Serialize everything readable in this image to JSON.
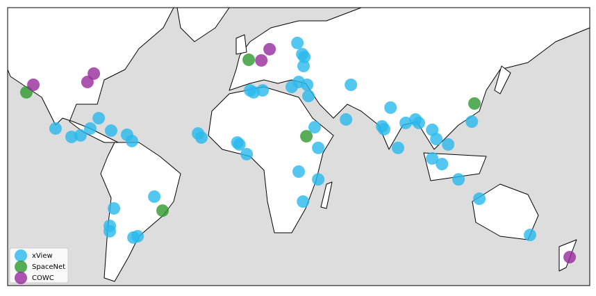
{
  "chart_data": {
    "type": "scatter",
    "xlim": [
      -124,
      186
    ],
    "ylim": [
      -59,
      70
    ],
    "series": [
      {
        "name": "xView",
        "color": "#29b9ee",
        "x": [
          -98.5,
          -90.0,
          -85.2,
          -80.0,
          -75.5,
          -68.9,
          -60.4,
          -57.8,
          -22.6,
          -20.8,
          -1.7,
          -0.6,
          3.3,
          5.1,
          11.8,
          7.0,
          30.3,
          32.9,
          33.6,
          34.0,
          27.3,
          31.0,
          35.5,
          36.2,
          58.8,
          56.2,
          39.5,
          41.4,
          31.0,
          41.4,
          33.3,
          -45.9,
          -67.4,
          -69.6,
          -69.6,
          -57.0,
          -54.8,
          79.9,
          75.4,
          76.5,
          83.9,
          88.0,
          93.2,
          95.0,
          102.1,
          104.3,
          110.6,
          102.1,
          107.3,
          123.2,
          116.1,
          127.2,
          154.2
        ],
        "values": [
          13.9,
          10.0,
          10.7,
          13.9,
          18.7,
          12.9,
          11.0,
          8.1,
          11.6,
          9.7,
          7.4,
          6.5,
          2.0,
          31.6,
          31.6,
          30.7,
          53.6,
          48.4,
          42.9,
          47.1,
          33.2,
          35.5,
          34.2,
          29.0,
          34.2,
          18.1,
          14.5,
          4.9,
          -6.1,
          -9.7,
          -20.0,
          -17.7,
          -23.2,
          -31.3,
          -33.8,
          -36.7,
          -36.1,
          23.6,
          14.9,
          13.6,
          4.9,
          16.5,
          18.1,
          16.5,
          13.3,
          9.0,
          6.5,
          0.0,
          -2.6,
          17.1,
          -9.7,
          -18.7,
          -35.5
        ]
      },
      {
        "name": "SpaceNet",
        "color": "#2e9a2e",
        "x": [
          -114.0,
          4.4,
          35.1,
          124.6,
          -41.5
        ],
        "values": [
          30.7,
          45.8,
          10.3,
          25.5,
          -24.2
        ]
      },
      {
        "name": "COWC",
        "color": "#962a9c",
        "x": [
          -110.3,
          -81.5,
          -78.1,
          11.1,
          15.5,
          175.3
        ],
        "values": [
          34.2,
          35.5,
          39.4,
          45.5,
          50.7,
          -45.8
        ]
      }
    ]
  }
}
